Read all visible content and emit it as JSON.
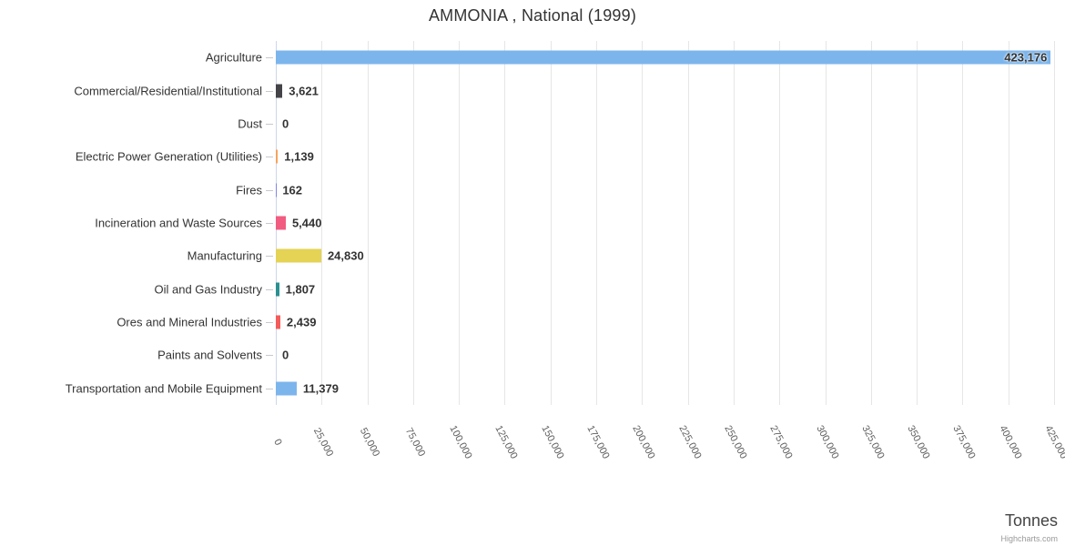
{
  "title": "AMMONIA , National (1999)",
  "x_axis_title": "Tonnes",
  "credits": "Highcharts.com",
  "colors": {
    "grid": "#e6e6e6",
    "axis_line": "#ccd6eb",
    "title_text": "#333333",
    "label_text": "#333333",
    "tick_text": "#606060"
  },
  "chart_data": {
    "type": "bar",
    "orientation": "horizontal",
    "title": "AMMONIA , National (1999)",
    "xlabel": "Tonnes",
    "xlim": [
      0,
      425000
    ],
    "x_tick_interval": 25000,
    "x_tick_labels": [
      "0",
      "25,000",
      "50,000",
      "75,000",
      "100,000",
      "125,000",
      "150,000",
      "175,000",
      "200,000",
      "225,000",
      "250,000",
      "275,000",
      "300,000",
      "325,000",
      "350,000",
      "375,000",
      "400,000",
      "425,000"
    ],
    "grid": true,
    "legend": false,
    "categories": [
      "Agriculture",
      "Commercial/Residential/Institutional",
      "Dust",
      "Electric Power Generation (Utilities)",
      "Fires",
      "Incineration and Waste Sources",
      "Manufacturing",
      "Oil and Gas Industry",
      "Ores and Mineral Industries",
      "Paints and Solvents",
      "Transportation and Mobile Equipment"
    ],
    "values": [
      423176,
      3621,
      0,
      1139,
      162,
      5440,
      24830,
      1807,
      2439,
      0,
      11379
    ],
    "value_labels": [
      "423,176",
      "3,621",
      "0",
      "1,139",
      "162",
      "5,440",
      "24,830",
      "1,807",
      "2,439",
      "0",
      "11,379"
    ],
    "bar_colors": [
      "#7cb5ec",
      "#434348",
      "#90ed7d",
      "#f7a35c",
      "#8085e9",
      "#f15c80",
      "#e4d354",
      "#2b908f",
      "#f45b5b",
      "#91e8e1",
      "#7cb5ec"
    ]
  }
}
